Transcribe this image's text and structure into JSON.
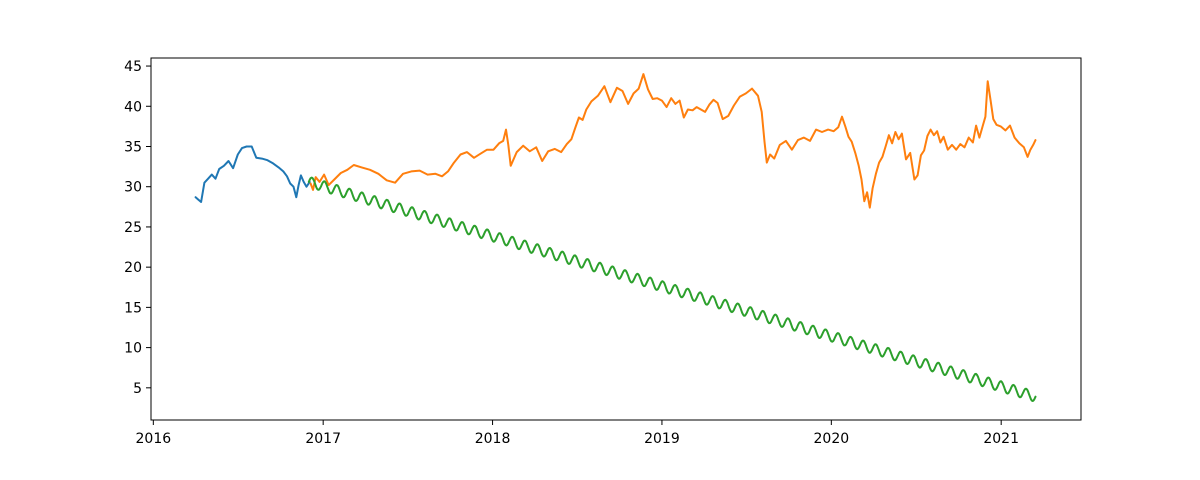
{
  "chart_data": {
    "type": "line",
    "title": "",
    "xlabel": "",
    "ylabel": "",
    "x_type": "date",
    "xlim": [
      "2015-12-27",
      "2021-06-22"
    ],
    "ylim": [
      1.0,
      46.0
    ],
    "xticks": [
      {
        "date": "2016-01-01",
        "label": "2016"
      },
      {
        "date": "2017-01-01",
        "label": "2017"
      },
      {
        "date": "2018-01-01",
        "label": "2018"
      },
      {
        "date": "2019-01-01",
        "label": "2019"
      },
      {
        "date": "2020-01-01",
        "label": "2020"
      },
      {
        "date": "2021-01-01",
        "label": "2021"
      }
    ],
    "yticks": [
      5,
      10,
      15,
      20,
      25,
      30,
      35,
      40,
      45
    ],
    "ytick_labels": [
      "5",
      "10",
      "15",
      "20",
      "25",
      "30",
      "35",
      "40",
      "45"
    ],
    "grid": false,
    "legend": "none",
    "series": [
      {
        "color": "#1f77b4",
        "points": [
          [
            "2016-04-01",
            28.7
          ],
          [
            "2016-04-07",
            28.4
          ],
          [
            "2016-04-13",
            28.1
          ],
          [
            "2016-04-20",
            30.5
          ],
          [
            "2016-04-28",
            31.0
          ],
          [
            "2016-05-06",
            31.5
          ],
          [
            "2016-05-14",
            31.0
          ],
          [
            "2016-05-22",
            32.2
          ],
          [
            "2016-06-01",
            32.6
          ],
          [
            "2016-06-11",
            33.2
          ],
          [
            "2016-06-21",
            32.3
          ],
          [
            "2016-07-01",
            34.0
          ],
          [
            "2016-07-10",
            34.8
          ],
          [
            "2016-07-20",
            35.0
          ],
          [
            "2016-07-31",
            35.0
          ],
          [
            "2016-08-10",
            33.6
          ],
          [
            "2016-08-22",
            33.5
          ],
          [
            "2016-09-03",
            33.3
          ],
          [
            "2016-09-15",
            32.9
          ],
          [
            "2016-09-27",
            32.4
          ],
          [
            "2016-10-07",
            31.9
          ],
          [
            "2016-10-15",
            31.3
          ],
          [
            "2016-10-22",
            30.4
          ],
          [
            "2016-10-29",
            30.0
          ],
          [
            "2016-11-04",
            28.7
          ],
          [
            "2016-11-09",
            30.2
          ],
          [
            "2016-11-14",
            31.4
          ],
          [
            "2016-11-20",
            30.6
          ],
          [
            "2016-11-26",
            30.0
          ],
          [
            "2016-12-03",
            30.6
          ]
        ]
      },
      {
        "color": "#ff7f0e",
        "points": [
          [
            "2016-12-05",
            30.4
          ],
          [
            "2016-12-10",
            29.6
          ],
          [
            "2016-12-16",
            31.2
          ],
          [
            "2016-12-24",
            30.6
          ],
          [
            "2017-01-03",
            31.5
          ],
          [
            "2017-01-13",
            30.2
          ],
          [
            "2017-01-25",
            30.9
          ],
          [
            "2017-02-08",
            31.7
          ],
          [
            "2017-02-22",
            32.1
          ],
          [
            "2017-03-08",
            32.7
          ],
          [
            "2017-03-25",
            32.4
          ],
          [
            "2017-04-12",
            32.1
          ],
          [
            "2017-04-30",
            31.6
          ],
          [
            "2017-05-18",
            30.8
          ],
          [
            "2017-06-05",
            30.5
          ],
          [
            "2017-06-22",
            31.6
          ],
          [
            "2017-07-10",
            31.9
          ],
          [
            "2017-07-28",
            32.0
          ],
          [
            "2017-08-14",
            31.5
          ],
          [
            "2017-08-31",
            31.6
          ],
          [
            "2017-09-14",
            31.3
          ],
          [
            "2017-09-27",
            31.9
          ],
          [
            "2017-10-10",
            33.0
          ],
          [
            "2017-10-24",
            34.0
          ],
          [
            "2017-11-07",
            34.3
          ],
          [
            "2017-11-22",
            33.6
          ],
          [
            "2017-12-06",
            34.1
          ],
          [
            "2017-12-20",
            34.6
          ],
          [
            "2018-01-03",
            34.6
          ],
          [
            "2018-01-15",
            35.4
          ],
          [
            "2018-01-24",
            35.7
          ],
          [
            "2018-01-30",
            37.1
          ],
          [
            "2018-02-04",
            35.2
          ],
          [
            "2018-02-09",
            32.6
          ],
          [
            "2018-02-22",
            34.3
          ],
          [
            "2018-03-08",
            35.1
          ],
          [
            "2018-03-22",
            34.4
          ],
          [
            "2018-04-05",
            34.9
          ],
          [
            "2018-04-18",
            33.2
          ],
          [
            "2018-05-01",
            34.4
          ],
          [
            "2018-05-15",
            34.7
          ],
          [
            "2018-05-29",
            34.3
          ],
          [
            "2018-06-10",
            35.3
          ],
          [
            "2018-06-20",
            35.9
          ],
          [
            "2018-06-28",
            37.3
          ],
          [
            "2018-07-06",
            38.6
          ],
          [
            "2018-07-14",
            38.3
          ],
          [
            "2018-07-22",
            39.6
          ],
          [
            "2018-08-02",
            40.6
          ],
          [
            "2018-08-16",
            41.3
          ],
          [
            "2018-08-30",
            42.5
          ],
          [
            "2018-09-12",
            40.5
          ],
          [
            "2018-09-26",
            42.3
          ],
          [
            "2018-10-08",
            41.9
          ],
          [
            "2018-10-20",
            40.3
          ],
          [
            "2018-11-01",
            41.6
          ],
          [
            "2018-11-12",
            42.2
          ],
          [
            "2018-11-22",
            44.0
          ],
          [
            "2018-12-02",
            42.1
          ],
          [
            "2018-12-12",
            40.9
          ],
          [
            "2018-12-22",
            41.0
          ],
          [
            "2019-01-01",
            40.7
          ],
          [
            "2019-01-11",
            39.9
          ],
          [
            "2019-01-21",
            41.0
          ],
          [
            "2019-01-30",
            40.3
          ],
          [
            "2019-02-08",
            40.7
          ],
          [
            "2019-02-17",
            38.6
          ],
          [
            "2019-02-26",
            39.6
          ],
          [
            "2019-03-08",
            39.5
          ],
          [
            "2019-03-17",
            39.9
          ],
          [
            "2019-03-26",
            39.6
          ],
          [
            "2019-04-04",
            39.3
          ],
          [
            "2019-04-13",
            40.2
          ],
          [
            "2019-04-22",
            40.8
          ],
          [
            "2019-05-01",
            40.4
          ],
          [
            "2019-05-12",
            38.4
          ],
          [
            "2019-05-24",
            38.8
          ],
          [
            "2019-06-05",
            40.1
          ],
          [
            "2019-06-18",
            41.2
          ],
          [
            "2019-07-01",
            41.6
          ],
          [
            "2019-07-14",
            42.2
          ],
          [
            "2019-07-27",
            41.3
          ],
          [
            "2019-08-04",
            39.3
          ],
          [
            "2019-08-10",
            35.6
          ],
          [
            "2019-08-15",
            33.0
          ],
          [
            "2019-08-22",
            34.0
          ],
          [
            "2019-08-31",
            33.5
          ],
          [
            "2019-09-12",
            35.2
          ],
          [
            "2019-09-25",
            35.7
          ],
          [
            "2019-10-08",
            34.6
          ],
          [
            "2019-10-21",
            35.8
          ],
          [
            "2019-11-03",
            36.1
          ],
          [
            "2019-11-16",
            35.7
          ],
          [
            "2019-11-29",
            37.1
          ],
          [
            "2019-12-12",
            36.8
          ],
          [
            "2019-12-25",
            37.1
          ],
          [
            "2020-01-06",
            36.9
          ],
          [
            "2020-01-16",
            37.4
          ],
          [
            "2020-01-24",
            38.7
          ],
          [
            "2020-01-31",
            37.5
          ],
          [
            "2020-02-07",
            36.2
          ],
          [
            "2020-02-14",
            35.6
          ],
          [
            "2020-02-22",
            34.1
          ],
          [
            "2020-02-29",
            32.6
          ],
          [
            "2020-03-06",
            30.9
          ],
          [
            "2020-03-12",
            28.2
          ],
          [
            "2020-03-18",
            29.3
          ],
          [
            "2020-03-24",
            27.4
          ],
          [
            "2020-03-30",
            29.8
          ],
          [
            "2020-04-06",
            31.6
          ],
          [
            "2020-04-13",
            33.0
          ],
          [
            "2020-04-20",
            33.7
          ],
          [
            "2020-04-27",
            35.0
          ],
          [
            "2020-05-04",
            36.4
          ],
          [
            "2020-05-11",
            35.4
          ],
          [
            "2020-05-18",
            36.8
          ],
          [
            "2020-05-25",
            35.9
          ],
          [
            "2020-06-01",
            36.6
          ],
          [
            "2020-06-10",
            33.4
          ],
          [
            "2020-06-19",
            34.2
          ],
          [
            "2020-06-28",
            30.9
          ],
          [
            "2020-07-05",
            31.4
          ],
          [
            "2020-07-12",
            33.9
          ],
          [
            "2020-07-19",
            34.5
          ],
          [
            "2020-07-26",
            36.3
          ],
          [
            "2020-08-02",
            37.1
          ],
          [
            "2020-08-09",
            36.4
          ],
          [
            "2020-08-16",
            36.9
          ],
          [
            "2020-08-23",
            35.5
          ],
          [
            "2020-08-30",
            36.2
          ],
          [
            "2020-09-08",
            34.6
          ],
          [
            "2020-09-17",
            35.2
          ],
          [
            "2020-09-26",
            34.6
          ],
          [
            "2020-10-05",
            35.3
          ],
          [
            "2020-10-14",
            34.9
          ],
          [
            "2020-10-23",
            36.1
          ],
          [
            "2020-11-01",
            35.5
          ],
          [
            "2020-11-08",
            37.6
          ],
          [
            "2020-11-15",
            36.1
          ],
          [
            "2020-11-22",
            37.5
          ],
          [
            "2020-11-28",
            38.7
          ],
          [
            "2020-12-03",
            43.1
          ],
          [
            "2020-12-09",
            40.8
          ],
          [
            "2020-12-15",
            38.4
          ],
          [
            "2020-12-22",
            37.7
          ],
          [
            "2020-12-31",
            37.5
          ],
          [
            "2021-01-10",
            37.0
          ],
          [
            "2021-01-20",
            37.6
          ],
          [
            "2021-01-30",
            36.1
          ],
          [
            "2021-02-09",
            35.4
          ],
          [
            "2021-02-19",
            34.9
          ],
          [
            "2021-02-27",
            33.7
          ],
          [
            "2021-03-05",
            34.6
          ],
          [
            "2021-03-11",
            35.2
          ],
          [
            "2021-03-16",
            35.8
          ]
        ]
      },
      {
        "color": "#2ca02c",
        "start": "2016-12-01",
        "end": "2021-03-16",
        "start_value": 30.6,
        "end_value": 3.9,
        "wiggle_amplitude": 0.65,
        "wiggle_period_days": 27
      }
    ]
  }
}
